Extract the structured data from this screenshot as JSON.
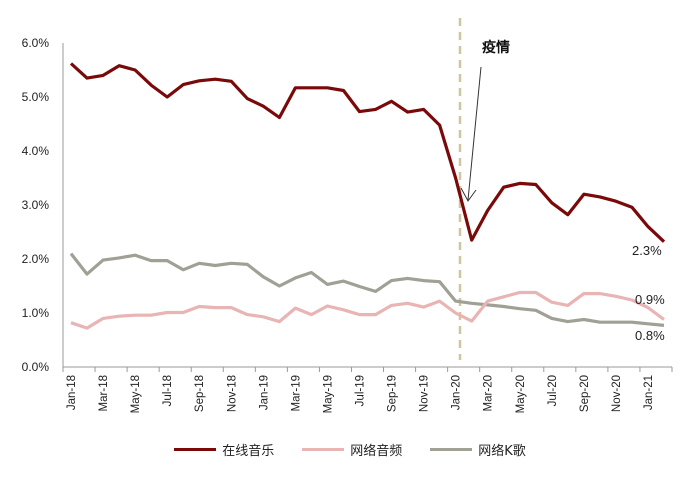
{
  "chart_data": {
    "type": "line",
    "title": "",
    "xlabel": "",
    "ylabel": "",
    "ylim": [
      0,
      6
    ],
    "yticks": [
      "0.0%",
      "1.0%",
      "2.0%",
      "3.0%",
      "4.0%",
      "5.0%",
      "6.0%"
    ],
    "grid": false,
    "legend_position": "bottom",
    "x": [
      "Jan-18",
      "Feb-18",
      "Mar-18",
      "Apr-18",
      "May-18",
      "Jun-18",
      "Jul-18",
      "Aug-18",
      "Sep-18",
      "Oct-18",
      "Nov-18",
      "Dec-18",
      "Jan-19",
      "Feb-19",
      "Mar-19",
      "Apr-19",
      "May-19",
      "Jun-19",
      "Jul-19",
      "Aug-19",
      "Sep-19",
      "Oct-19",
      "Nov-19",
      "Dec-19",
      "Jan-20",
      "Feb-20",
      "Mar-20",
      "Apr-20",
      "May-20",
      "Jun-20",
      "Jul-20",
      "Aug-20",
      "Sep-20",
      "Oct-20",
      "Nov-20",
      "Dec-20",
      "Jan-21",
      "Feb-21"
    ],
    "xtick_labels": [
      "Jan-18",
      "Mar-18",
      "May-18",
      "Jul-18",
      "Sep-18",
      "Nov-18",
      "Jan-19",
      "Mar-19",
      "May-19",
      "Jul-19",
      "Sep-19",
      "Nov-19",
      "Jan-20",
      "Mar-20",
      "May-20",
      "Jul-20",
      "Sep-20",
      "Nov-20",
      "Jan-21"
    ],
    "series": [
      {
        "name": "在线音乐",
        "color": "#7a0a0a",
        "values": [
          5.62,
          5.35,
          5.4,
          5.58,
          5.5,
          5.22,
          5.0,
          5.23,
          5.3,
          5.33,
          5.29,
          4.97,
          4.83,
          4.62,
          5.17,
          5.17,
          5.17,
          5.12,
          4.73,
          4.77,
          4.92,
          4.72,
          4.77,
          4.48,
          3.5,
          2.35,
          2.9,
          3.33,
          3.4,
          3.38,
          3.04,
          2.82,
          3.2,
          3.15,
          3.07,
          2.96,
          2.6,
          2.32
        ]
      },
      {
        "name": "网络音频",
        "color": "#e8b4b4",
        "values": [
          0.82,
          0.72,
          0.9,
          0.94,
          0.96,
          0.96,
          1.01,
          1.01,
          1.12,
          1.1,
          1.1,
          0.97,
          0.93,
          0.84,
          1.09,
          0.97,
          1.13,
          1.06,
          0.97,
          0.97,
          1.14,
          1.18,
          1.11,
          1.22,
          1.0,
          0.85,
          1.22,
          1.3,
          1.38,
          1.38,
          1.2,
          1.14,
          1.36,
          1.36,
          1.31,
          1.24,
          1.1,
          0.88
        ]
      },
      {
        "name": "网络K歌",
        "color": "#a0a095",
        "values": [
          2.1,
          1.72,
          1.98,
          2.02,
          2.07,
          1.97,
          1.97,
          1.8,
          1.92,
          1.88,
          1.92,
          1.9,
          1.67,
          1.5,
          1.65,
          1.75,
          1.53,
          1.59,
          1.49,
          1.4,
          1.6,
          1.64,
          1.6,
          1.58,
          1.22,
          1.18,
          1.15,
          1.12,
          1.08,
          1.05,
          0.9,
          0.84,
          0.88,
          0.83,
          0.83,
          0.83,
          0.8,
          0.77
        ]
      }
    ],
    "annotations": [
      {
        "text": "疫情",
        "type": "arrow-label",
        "points_to": "Feb-20"
      },
      {
        "text": "vertical-dashed-line",
        "at": "Jan-20"
      }
    ],
    "end_labels": {
      "在线音乐": "2.3%",
      "网络音频": "0.9%",
      "网络K歌": "0.8%"
    }
  },
  "annotation": {
    "label": "疫情"
  },
  "end_labels": {
    "music": "2.3%",
    "audio": "0.9%",
    "karaoke": "0.8%"
  },
  "legend": [
    {
      "label": "在线音乐",
      "color": "#7a0a0a"
    },
    {
      "label": "网络音频",
      "color": "#e8b4b4"
    },
    {
      "label": "网络K歌",
      "color": "#a0a095"
    }
  ]
}
